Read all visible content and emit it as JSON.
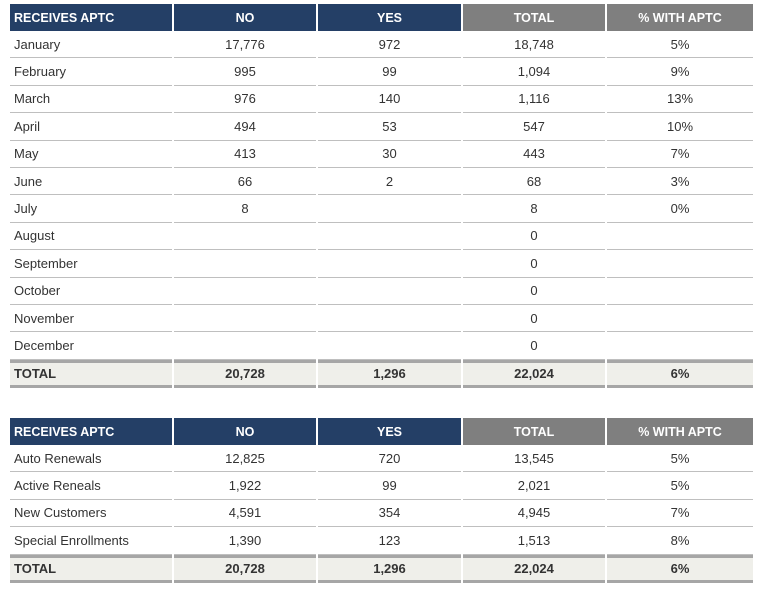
{
  "tables": [
    {
      "header": [
        "RECEIVES APTC",
        "NO",
        "YES",
        "TOTAL",
        "% WITH APTC"
      ],
      "rows": [
        [
          "January",
          "17,776",
          "972",
          "18,748",
          "5%"
        ],
        [
          "February",
          "995",
          "99",
          "1,094",
          "9%"
        ],
        [
          "March",
          "976",
          "140",
          "1,116",
          "13%"
        ],
        [
          "April",
          "494",
          "53",
          "547",
          "10%"
        ],
        [
          "May",
          "413",
          "30",
          "443",
          "7%"
        ],
        [
          "June",
          "66",
          "2",
          "68",
          "3%"
        ],
        [
          "July",
          "8",
          null,
          "8",
          "0%"
        ],
        [
          "August",
          null,
          null,
          "0",
          null
        ],
        [
          "September",
          null,
          null,
          "0",
          null
        ],
        [
          "October",
          null,
          null,
          "0",
          null
        ],
        [
          "November",
          null,
          null,
          "0",
          null
        ],
        [
          "December",
          null,
          null,
          "0",
          null
        ]
      ],
      "total": [
        "TOTAL",
        "20,728",
        "1,296",
        "22,024",
        "6%"
      ]
    },
    {
      "header": [
        "RECEIVES APTC",
        "NO",
        "YES",
        "TOTAL",
        "% WITH APTC"
      ],
      "rows": [
        [
          "Auto Renewals",
          "12,825",
          "720",
          "13,545",
          "5%"
        ],
        [
          "Active Reneals",
          "1,922",
          "99",
          "2,021",
          "5%"
        ],
        [
          "New Customers",
          "4,591",
          "354",
          "4,945",
          "7%"
        ],
        [
          "Special Enrollments",
          "1,390",
          "123",
          "1,513",
          "8%"
        ]
      ],
      "total": [
        "TOTAL",
        "20,728",
        "1,296",
        "22,024",
        "6%"
      ]
    }
  ]
}
